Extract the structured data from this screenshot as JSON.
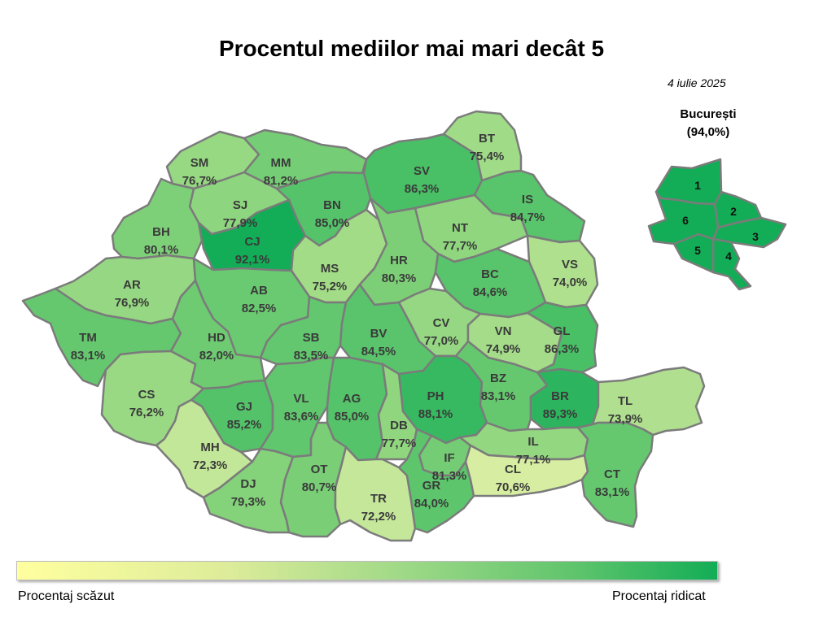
{
  "title": "Procentul mediilor mai mari decât 5",
  "date": "4 iulie 2025",
  "bucharest": {
    "name": "București",
    "value": "(94,0%)",
    "sectors": [
      "1",
      "2",
      "3",
      "4",
      "5",
      "6"
    ]
  },
  "legend": {
    "low": "Procentaj scăzut",
    "high": "Procentaj ridicat",
    "low_color": "#ffff9f",
    "high_color": "#12ad56"
  },
  "counties": [
    {
      "code": "SM",
      "value": "76,7%"
    },
    {
      "code": "MM",
      "value": "81,2%"
    },
    {
      "code": "BT",
      "value": "75,4%"
    },
    {
      "code": "SV",
      "value": "86,3%"
    },
    {
      "code": "SJ",
      "value": "77,9%"
    },
    {
      "code": "BN",
      "value": "85,0%"
    },
    {
      "code": "IS",
      "value": "84,7%"
    },
    {
      "code": "BH",
      "value": "80,1%"
    },
    {
      "code": "CJ",
      "value": "92,1%"
    },
    {
      "code": "NT",
      "value": "77,7%"
    },
    {
      "code": "MS",
      "value": "75,2%"
    },
    {
      "code": "HR",
      "value": "80,3%"
    },
    {
      "code": "VS",
      "value": "74,0%"
    },
    {
      "code": "AR",
      "value": "76,9%"
    },
    {
      "code": "AB",
      "value": "82,5%"
    },
    {
      "code": "BC",
      "value": "84,6%"
    },
    {
      "code": "CV",
      "value": "77,0%"
    },
    {
      "code": "TM",
      "value": "83,1%"
    },
    {
      "code": "HD",
      "value": "82,0%"
    },
    {
      "code": "SB",
      "value": "83,5%"
    },
    {
      "code": "BV",
      "value": "84,5%"
    },
    {
      "code": "VN",
      "value": "74,9%"
    },
    {
      "code": "GL",
      "value": "86,3%"
    },
    {
      "code": "CS",
      "value": "76,2%"
    },
    {
      "code": "PH",
      "value": "88,1%"
    },
    {
      "code": "BZ",
      "value": "83,1%"
    },
    {
      "code": "BR",
      "value": "89,3%"
    },
    {
      "code": "GJ",
      "value": "85,2%"
    },
    {
      "code": "VL",
      "value": "83,6%"
    },
    {
      "code": "AG",
      "value": "85,0%"
    },
    {
      "code": "DB",
      "value": "77,7%"
    },
    {
      "code": "TL",
      "value": "73,9%"
    },
    {
      "code": "MH",
      "value": "72,3%"
    },
    {
      "code": "IF",
      "value": "81,3%"
    },
    {
      "code": "IL",
      "value": "77,1%"
    },
    {
      "code": "DJ",
      "value": "79,3%"
    },
    {
      "code": "OT",
      "value": "80,7%"
    },
    {
      "code": "TR",
      "value": "72,2%"
    },
    {
      "code": "GR",
      "value": "84,0%"
    },
    {
      "code": "CL",
      "value": "70,6%"
    },
    {
      "code": "CT",
      "value": "83,1%"
    }
  ]
}
